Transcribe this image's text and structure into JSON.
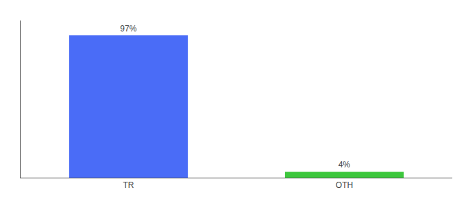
{
  "chart_data": {
    "type": "bar",
    "categories": [
      "TR",
      "OTH"
    ],
    "values": [
      97,
      4
    ],
    "value_labels": [
      "97%",
      "4%"
    ],
    "data_labels": true,
    "colors": [
      "#4A6CF7",
      "#3DC73D"
    ],
    "ylim": [
      0,
      107
    ],
    "grid": false,
    "tick_labels": "x"
  }
}
